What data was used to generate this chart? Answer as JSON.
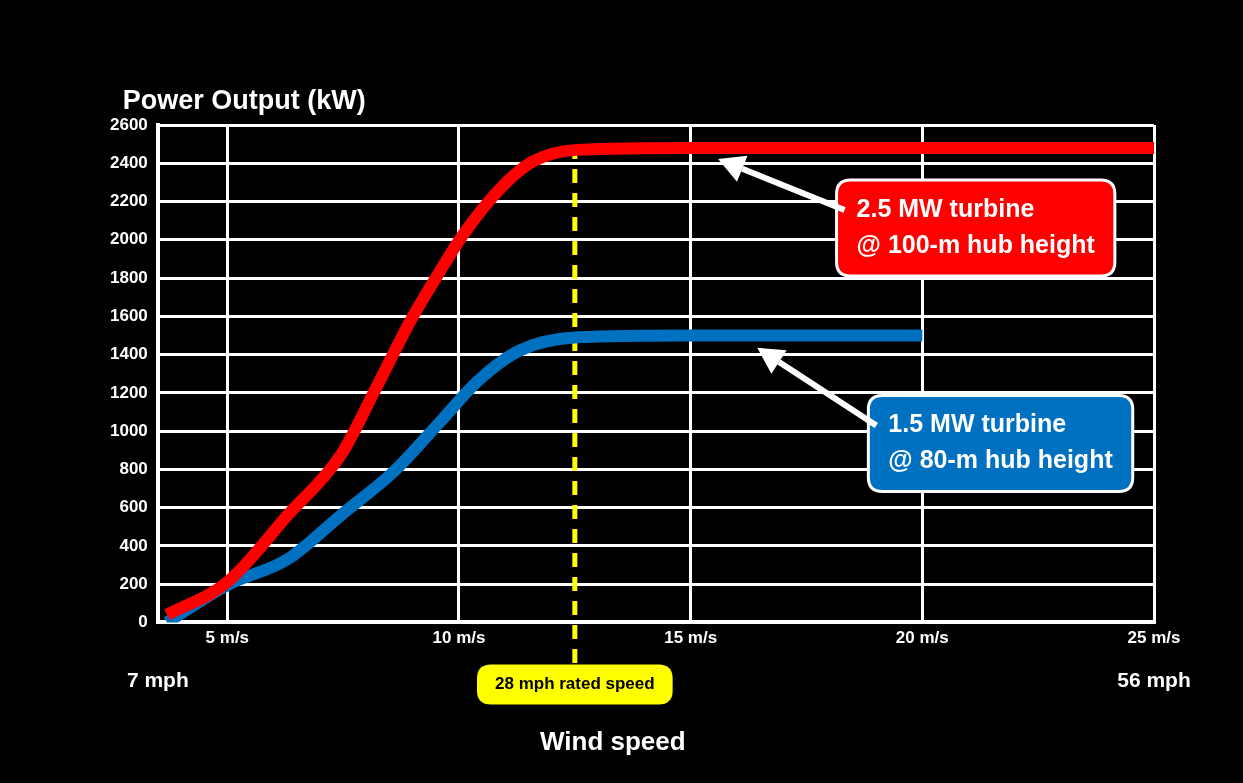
{
  "chart_data": {
    "type": "line",
    "ylabel": "Power Output (kW)",
    "xlabel": "Wind speed",
    "xlim": [
      3.5,
      25
    ],
    "xticks": [
      {
        "value": 5,
        "label": "5 m/s"
      },
      {
        "value": 10,
        "label": "10 m/s"
      },
      {
        "value": 15,
        "label": "15 m/s"
      },
      {
        "value": 20,
        "label": "20 m/s"
      },
      {
        "value": 25,
        "label": "25 m/s"
      }
    ],
    "x2lim": [
      7,
      56
    ],
    "x2ticks": [
      {
        "value": 7,
        "label": "7 mph"
      },
      {
        "value": 56,
        "label": "56 mph"
      }
    ],
    "ylim": [
      0,
      2600
    ],
    "yticks": [
      0,
      200,
      400,
      600,
      800,
      1000,
      1200,
      1400,
      1600,
      1800,
      2000,
      2200,
      2400,
      2600
    ],
    "grid": true,
    "legend": false,
    "marker": "none",
    "line_style": "solid",
    "series": [
      {
        "color": "#ff0000",
        "x": [
          3.7,
          5,
          6.3,
          7.45,
          8.2,
          8.95,
          9.6,
          10.1,
          10.9,
          11.6,
          12.55,
          15.1,
          25
        ],
        "values": [
          40,
          210,
          560,
          875,
          1220,
          1575,
          1840,
          2030,
          2270,
          2410,
          2470,
          2480,
          2480
        ]
      },
      {
        "color": "#0070c0",
        "x": [
          3.7,
          5,
          6.3,
          7.45,
          8.6,
          9.6,
          10.4,
          11.3,
          12.55,
          15,
          20
        ],
        "values": [
          0,
          195,
          330,
          560,
          790,
          1050,
          1260,
          1420,
          1490,
          1500,
          1500
        ]
      }
    ],
    "ref_lines": [
      {
        "axis": "x",
        "value": 12.5,
        "label": "28 mph rated speed",
        "color": "#ffff00",
        "line_style": "dashed"
      }
    ],
    "annotations": [
      "2.5 MW turbine\n@ 100-m hub height",
      "1.5 MW turbine\n@ 80-m hub height"
    ]
  }
}
